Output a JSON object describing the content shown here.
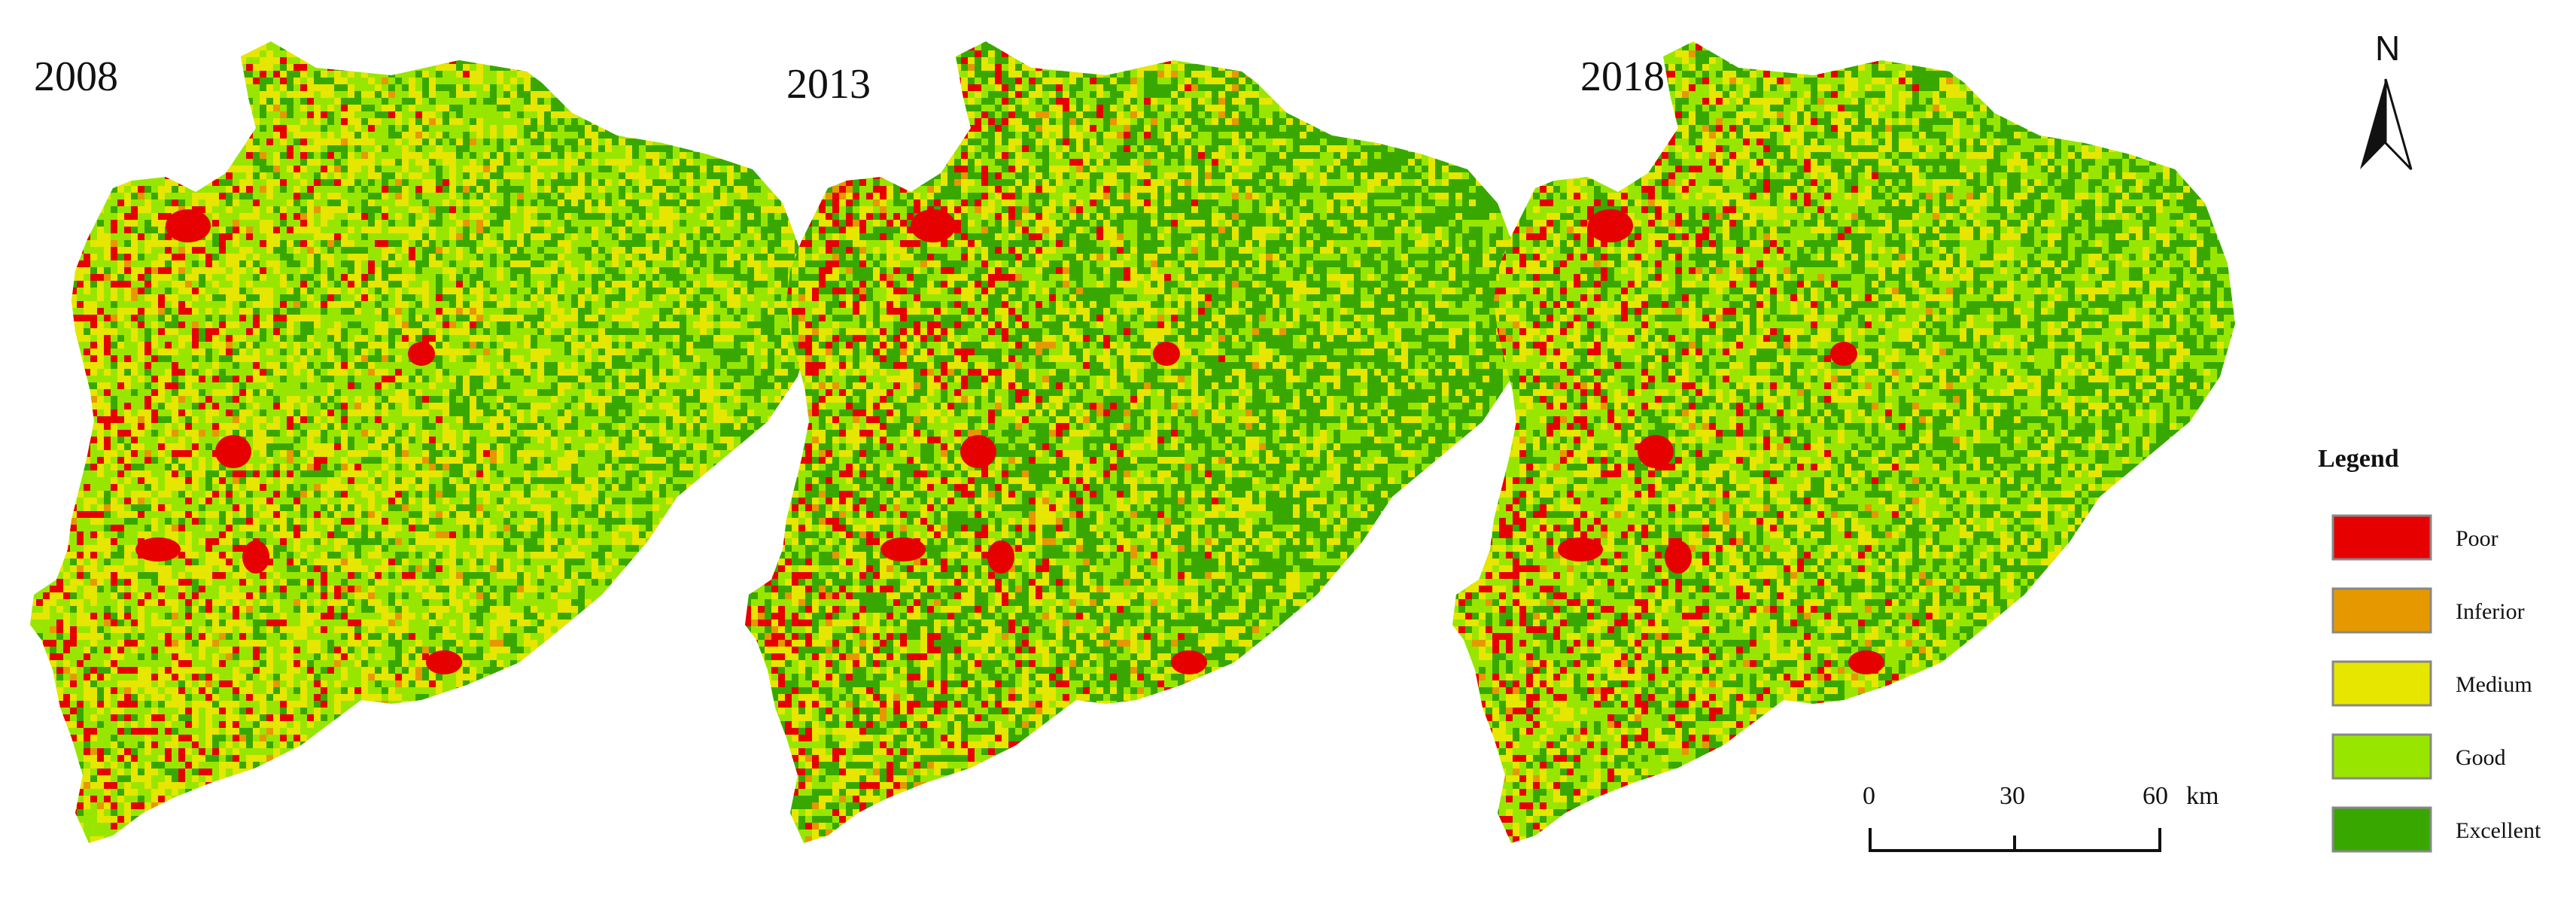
{
  "colors": {
    "Poor": "#e60000",
    "Inferior": "#e69800",
    "Medium": "#e6e600",
    "Good": "#98e600",
    "Excellent": "#38a800"
  },
  "maps": [
    {
      "year": "2008",
      "class_weights": {
        "Poor": 0.03,
        "Inferior": 0.02,
        "Medium": 0.33,
        "Good": 0.4,
        "Excellent": 0.22
      }
    },
    {
      "year": "2013",
      "class_weights": {
        "Poor": 0.04,
        "Inferior": 0.03,
        "Medium": 0.25,
        "Good": 0.26,
        "Excellent": 0.42
      }
    },
    {
      "year": "2018",
      "class_weights": {
        "Poor": 0.04,
        "Inferior": 0.02,
        "Medium": 0.24,
        "Good": 0.38,
        "Excellent": 0.32
      }
    }
  ],
  "north_arrow": {
    "label": "N"
  },
  "legend": {
    "title": "Legend",
    "items": [
      {
        "label": "Poor",
        "color": "#e60000"
      },
      {
        "label": "Inferior",
        "color": "#e69800"
      },
      {
        "label": "Medium",
        "color": "#e6e600"
      },
      {
        "label": "Good",
        "color": "#98e600"
      },
      {
        "label": "Excellent",
        "color": "#38a800"
      }
    ]
  },
  "scale_bar": {
    "tick_labels": [
      "0",
      "30",
      "60"
    ],
    "unit": "km"
  }
}
